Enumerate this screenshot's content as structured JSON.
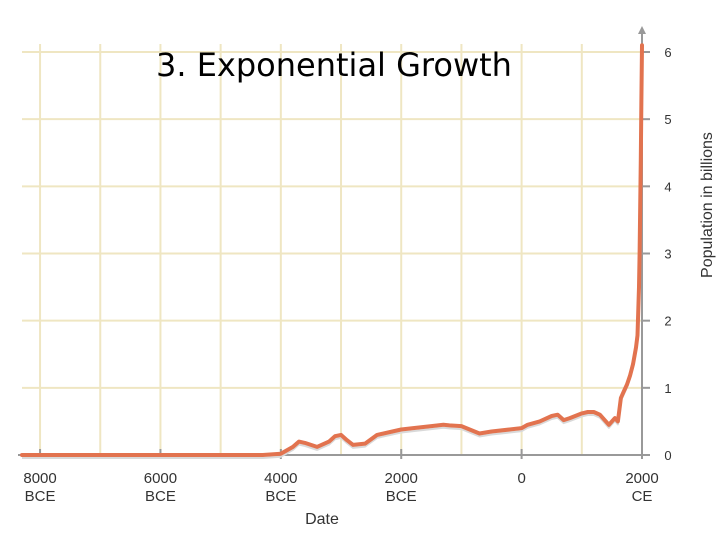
{
  "slide": {
    "title": "3.  Exponential Growth"
  },
  "colors": {
    "line": "#e2734f",
    "grid": "#efe6c2",
    "axis": "#999999",
    "shadow": "#d9d9d9"
  },
  "chart_data": {
    "type": "line",
    "title": "",
    "xlabel": "Date",
    "ylabel": "Population in billions",
    "xlim": [
      -8300,
      2000
    ],
    "ylim": [
      0,
      6
    ],
    "grid": true,
    "x_ticks": [
      {
        "value": -8000,
        "line1": "8000",
        "line2": "BCE"
      },
      {
        "value": -6000,
        "line1": "6000",
        "line2": "BCE"
      },
      {
        "value": -4000,
        "line1": "4000",
        "line2": "BCE"
      },
      {
        "value": -2000,
        "line1": "2000",
        "line2": "BCE"
      },
      {
        "value": 0,
        "line1": "0",
        "line2": ""
      },
      {
        "value": 2000,
        "line1": "2000",
        "line2": "CE"
      }
    ],
    "y_ticks": [
      0,
      1,
      2,
      3,
      4,
      5,
      6
    ],
    "series": [
      {
        "x": [
          -8300,
          -4300,
          -4000,
          -3800,
          -3700,
          -3600,
          -3400,
          -3200,
          -3100,
          -3000,
          -2900,
          -2800,
          -2600,
          -2400,
          -2000,
          -1800,
          -1500,
          -1300,
          -1200,
          -1000,
          -700,
          -500,
          -200,
          0,
          100,
          300,
          500,
          600,
          700,
          800,
          1000,
          1100,
          1200,
          1300,
          1400,
          1450,
          1500,
          1550,
          1600,
          1650,
          1700,
          1750,
          1800,
          1850,
          1900,
          1925,
          1950,
          1960,
          1970,
          1980,
          1990,
          2000
        ],
        "y": [
          0.0,
          0.0,
          0.02,
          0.12,
          0.2,
          0.18,
          0.12,
          0.2,
          0.28,
          0.3,
          0.22,
          0.15,
          0.17,
          0.3,
          0.38,
          0.4,
          0.43,
          0.45,
          0.44,
          0.43,
          0.32,
          0.35,
          0.38,
          0.4,
          0.45,
          0.5,
          0.58,
          0.6,
          0.52,
          0.55,
          0.62,
          0.64,
          0.64,
          0.6,
          0.5,
          0.45,
          0.5,
          0.55,
          0.5,
          0.85,
          0.95,
          1.05,
          1.18,
          1.35,
          1.6,
          1.78,
          2.5,
          3.0,
          3.7,
          4.4,
          5.3,
          6.1
        ]
      }
    ]
  }
}
